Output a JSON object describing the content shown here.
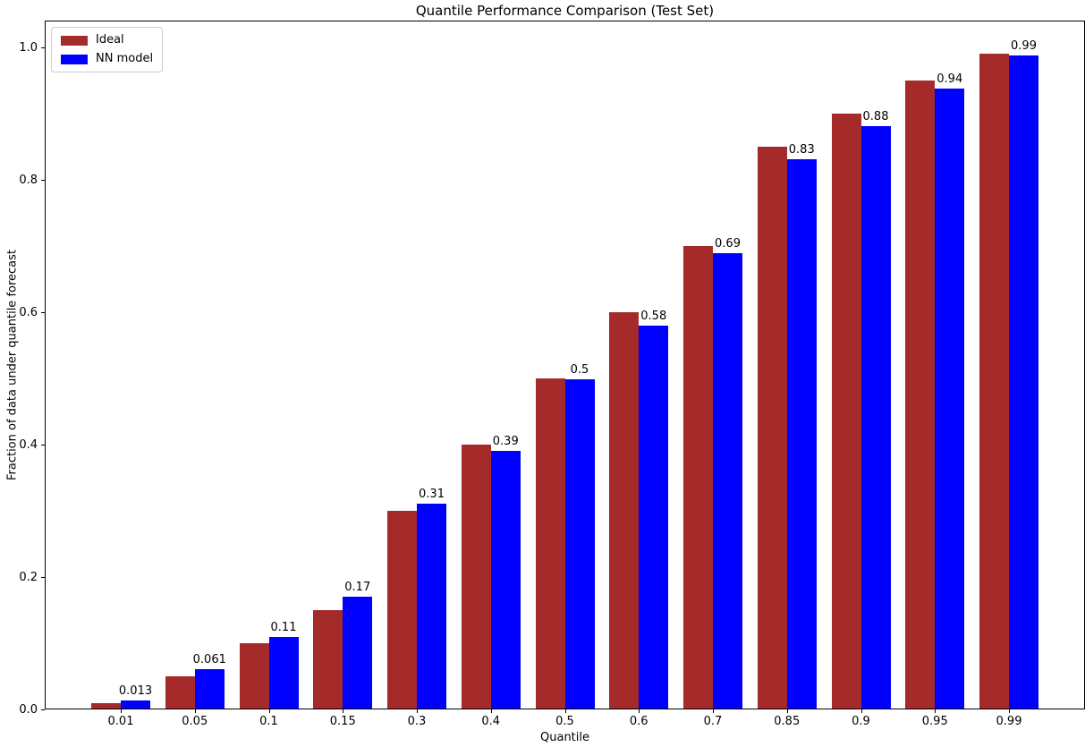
{
  "chart_data": {
    "type": "bar",
    "title": "Quantile Performance Comparison (Test Set)",
    "xlabel": "Quantile",
    "ylabel": "Fraction of data under quantile forecast",
    "categories": [
      "0.01",
      "0.05",
      "0.1",
      "0.15",
      "0.3",
      "0.4",
      "0.5",
      "0.6",
      "0.7",
      "0.85",
      "0.9",
      "0.95",
      "0.99"
    ],
    "series": [
      {
        "name": "Ideal",
        "color": "#A52A2A",
        "values": [
          0.01,
          0.05,
          0.1,
          0.15,
          0.3,
          0.4,
          0.5,
          0.6,
          0.7,
          0.85,
          0.9,
          0.95,
          0.99
        ]
      },
      {
        "name": "NN model",
        "color": "#0000FF",
        "values": [
          0.013,
          0.061,
          0.11,
          0.17,
          0.31,
          0.39,
          0.498,
          0.58,
          0.689,
          0.83,
          0.88,
          0.938,
          0.987
        ],
        "bar_labels": [
          "0.013",
          "0.061",
          "0.11",
          "0.17",
          "0.31",
          "0.39",
          "0.5",
          "0.58",
          "0.69",
          "0.83",
          "0.88",
          "0.94",
          "0.99"
        ]
      }
    ],
    "yticks": [
      "0.0",
      "0.2",
      "0.4",
      "0.6",
      "0.8",
      "1.0"
    ],
    "ylim": [
      0,
      1.04
    ],
    "grid": false,
    "legend_position": "upper left",
    "axis_color": "#000000",
    "background_color": "#ffffff"
  }
}
